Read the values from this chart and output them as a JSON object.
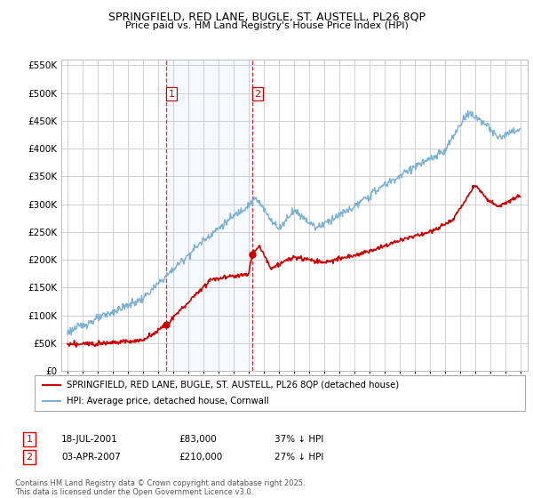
{
  "title": "SPRINGFIELD, RED LANE, BUGLE, ST. AUSTELL, PL26 8QP",
  "subtitle": "Price paid vs. HM Land Registry's House Price Index (HPI)",
  "background_color": "#ffffff",
  "plot_bg_color": "#ffffff",
  "grid_color": "#d0d0d0",
  "hpi_color": "#7ab0d4",
  "price_color": "#cc0000",
  "legend_label_price": "SPRINGFIELD, RED LANE, BUGLE, ST. AUSTELL, PL26 8QP (detached house)",
  "legend_label_hpi": "HPI: Average price, detached house, Cornwall",
  "transaction1_date": "18-JUL-2001",
  "transaction1_price": "£83,000",
  "transaction1_hpi": "37% ↓ HPI",
  "transaction2_date": "03-APR-2007",
  "transaction2_price": "£210,000",
  "transaction2_hpi": "27% ↓ HPI",
  "footer": "Contains HM Land Registry data © Crown copyright and database right 2025.\nThis data is licensed under the Open Government Licence v3.0.",
  "ylim": [
    0,
    560000
  ],
  "yticks": [
    0,
    50000,
    100000,
    150000,
    200000,
    250000,
    300000,
    350000,
    400000,
    450000,
    500000,
    550000
  ],
  "vline1_x": 2001.54,
  "vline2_x": 2007.25,
  "marker1_x": 2001.54,
  "marker1_y": 83000,
  "marker2_x": 2007.25,
  "marker2_y": 210000,
  "xmin": 1995,
  "xmax": 2025
}
